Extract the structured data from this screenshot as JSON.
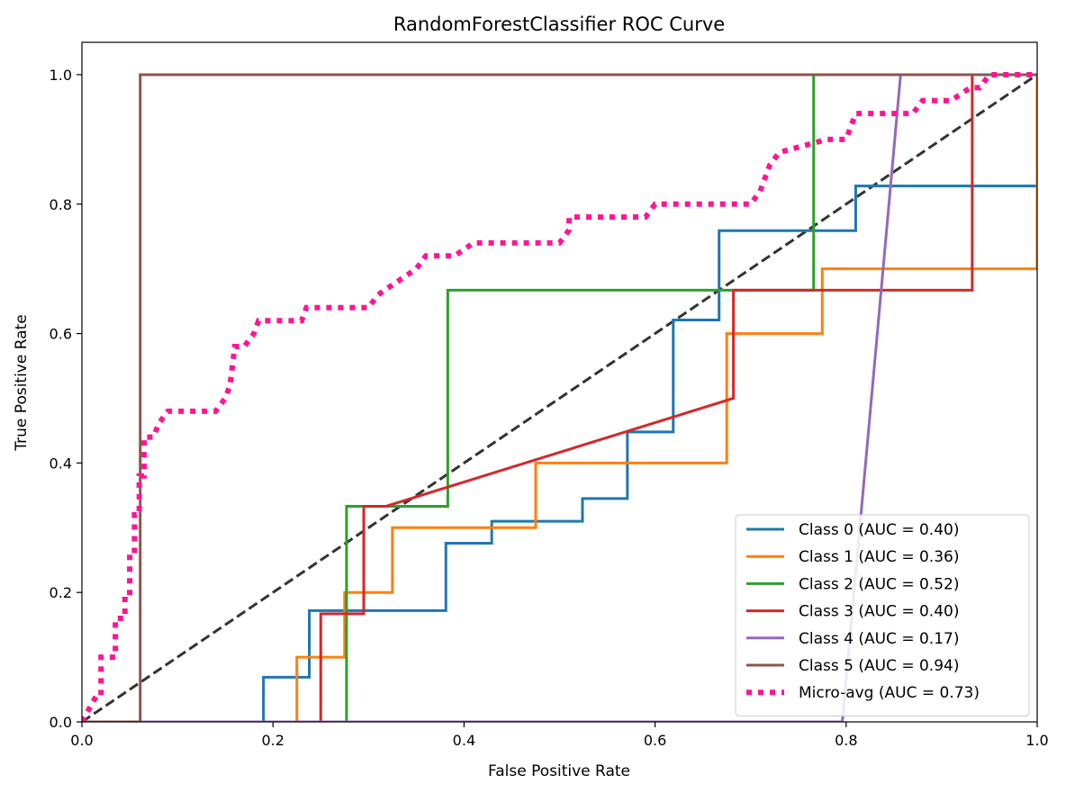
{
  "chart_data": {
    "type": "line",
    "title": "RandomForestClassifier ROC Curve",
    "xlabel": "False Positive Rate",
    "ylabel": "True Positive Rate",
    "xlim": [
      0.0,
      1.0
    ],
    "ylim": [
      0.0,
      1.05
    ],
    "xticks": [
      0.0,
      0.2,
      0.4,
      0.6,
      0.8,
      1.0
    ],
    "xtick_labels": [
      "0.0",
      "0.2",
      "0.4",
      "0.6",
      "0.8",
      "1.0"
    ],
    "yticks": [
      0.0,
      0.2,
      0.4,
      0.6,
      0.8,
      1.0
    ],
    "ytick_labels": [
      "0.0",
      "0.2",
      "0.4",
      "0.6",
      "0.8",
      "1.0"
    ],
    "grid": false,
    "legend_position": "bottom-right",
    "diagonal": {
      "x": [
        0,
        1
      ],
      "y": [
        0,
        1
      ],
      "color": "#333333",
      "style": "dashed"
    },
    "series": [
      {
        "name": "Class 0 (AUC = 0.40)",
        "color": "#1f77b4",
        "style": "solid",
        "x": [
          0,
          0.19,
          0.19,
          0.238,
          0.238,
          0.381,
          0.381,
          0.429,
          0.429,
          0.524,
          0.524,
          0.571,
          0.571,
          0.619,
          0.619,
          0.667,
          0.667,
          0.81,
          0.81,
          1.0
        ],
        "y": [
          0,
          0,
          0.069,
          0.069,
          0.172,
          0.172,
          0.276,
          0.276,
          0.31,
          0.31,
          0.345,
          0.345,
          0.448,
          0.448,
          0.621,
          0.621,
          0.759,
          0.759,
          0.828,
          0.828
        ]
      },
      {
        "name": "Class 1 (AUC = 0.36)",
        "color": "#ff7f0e",
        "style": "solid",
        "x": [
          0,
          0.225,
          0.225,
          0.275,
          0.275,
          0.325,
          0.325,
          0.475,
          0.475,
          0.675,
          0.675,
          0.775,
          0.775,
          1.0,
          1.0
        ],
        "y": [
          0,
          0,
          0.1,
          0.1,
          0.2,
          0.2,
          0.3,
          0.3,
          0.4,
          0.4,
          0.6,
          0.6,
          0.7,
          0.7,
          1.0
        ]
      },
      {
        "name": "Class 2 (AUC = 0.52)",
        "color": "#2ca02c",
        "style": "solid",
        "x": [
          0,
          0.277,
          0.277,
          0.383,
          0.383,
          0.766,
          0.766,
          1.0
        ],
        "y": [
          0,
          0,
          0.333,
          0.333,
          0.667,
          0.667,
          1.0,
          1.0
        ]
      },
      {
        "name": "Class 3 (AUC = 0.40)",
        "color": "#d62728",
        "style": "solid",
        "x": [
          0,
          0.25,
          0.25,
          0.295,
          0.295,
          0.318,
          0.682,
          0.682,
          0.932,
          0.932,
          1.0
        ],
        "y": [
          0,
          0,
          0.167,
          0.167,
          0.333,
          0.333,
          0.5,
          0.667,
          0.667,
          1.0,
          1.0
        ]
      },
      {
        "name": "Class 4 (AUC = 0.17)",
        "color": "#9467bd",
        "style": "solid",
        "x": [
          0,
          0.796,
          0.857,
          1.0
        ],
        "y": [
          0,
          0,
          1.0,
          1.0
        ]
      },
      {
        "name": "Class 5 (AUC = 0.94)",
        "color": "#8c564b",
        "style": "solid",
        "x": [
          0,
          0.061,
          0.061,
          1.0
        ],
        "y": [
          0,
          0,
          1.0,
          1.0
        ]
      },
      {
        "name": "Micro-avg (AUC = 0.73)",
        "color": "#ff1493",
        "style": "dotted",
        "x": [
          0,
          0.015,
          0.02,
          0.02,
          0.035,
          0.035,
          0.045,
          0.045,
          0.05,
          0.05,
          0.055,
          0.055,
          0.06,
          0.06,
          0.065,
          0.065,
          0.075,
          0.08,
          0.09,
          0.1,
          0.14,
          0.15,
          0.155,
          0.16,
          0.17,
          0.18,
          0.185,
          0.19,
          0.23,
          0.235,
          0.3,
          0.31,
          0.33,
          0.35,
          0.36,
          0.37,
          0.39,
          0.41,
          0.41,
          0.5,
          0.51,
          0.51,
          0.58,
          0.59,
          0.6,
          0.7,
          0.71,
          0.72,
          0.73,
          0.78,
          0.8,
          0.81,
          0.85,
          0.87,
          0.88,
          0.91,
          0.93,
          0.94,
          0.95,
          1.0
        ],
        "y": [
          0,
          0.04,
          0.04,
          0.1,
          0.1,
          0.16,
          0.16,
          0.2,
          0.2,
          0.26,
          0.26,
          0.32,
          0.32,
          0.38,
          0.38,
          0.44,
          0.44,
          0.46,
          0.48,
          0.48,
          0.48,
          0.5,
          0.52,
          0.58,
          0.58,
          0.6,
          0.62,
          0.62,
          0.62,
          0.64,
          0.64,
          0.66,
          0.68,
          0.7,
          0.72,
          0.72,
          0.72,
          0.74,
          0.74,
          0.74,
          0.76,
          0.78,
          0.78,
          0.78,
          0.8,
          0.8,
          0.82,
          0.86,
          0.88,
          0.9,
          0.9,
          0.94,
          0.94,
          0.94,
          0.96,
          0.96,
          0.98,
          0.98,
          1.0,
          1.0
        ]
      }
    ]
  }
}
